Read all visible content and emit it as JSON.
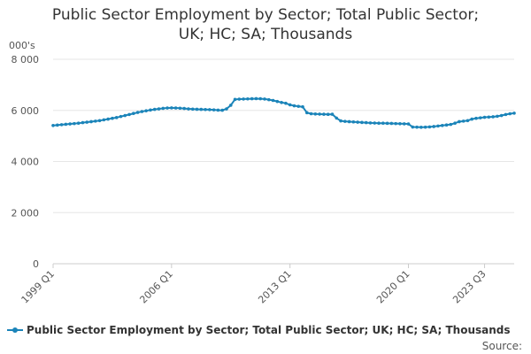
{
  "chart_data": {
    "type": "line",
    "title_lines": [
      "Public Sector Employment by Sector; Total Public Sector;",
      "UK; HC; SA; Thousands"
    ],
    "unit_label": "000's",
    "xlabel": "",
    "ylabel": "000's",
    "ylim": [
      0,
      8000
    ],
    "y_ticks": [
      0,
      2000,
      4000,
      6000,
      8000
    ],
    "y_tick_labels": [
      "0",
      "2 000",
      "4 000",
      "6 000",
      "8 000"
    ],
    "x_tick_labels": [
      "1999 Q1",
      "2006 Q1",
      "2013 Q1",
      "2020 Q1",
      "2023 Q3"
    ],
    "x_tick_indices": [
      0,
      28,
      56,
      84,
      102
    ],
    "grid": true,
    "legend_position": "bottom-left",
    "color": "#1b84b9",
    "series": [
      {
        "name": "Public Sector Employment by Sector; Total Public Sector; UK; HC; SA; Thousands",
        "start": "1999 Q1",
        "values": [
          5410,
          5425,
          5440,
          5455,
          5470,
          5485,
          5500,
          5520,
          5540,
          5560,
          5580,
          5600,
          5630,
          5660,
          5690,
          5720,
          5760,
          5800,
          5840,
          5880,
          5920,
          5955,
          5985,
          6015,
          6040,
          6060,
          6080,
          6095,
          6100,
          6095,
          6085,
          6075,
          6060,
          6050,
          6045,
          6040,
          6035,
          6030,
          6020,
          6010,
          6005,
          6060,
          6200,
          6430,
          6440,
          6445,
          6450,
          6455,
          6460,
          6455,
          6445,
          6420,
          6390,
          6350,
          6310,
          6280,
          6220,
          6180,
          6160,
          6140,
          5910,
          5870,
          5860,
          5855,
          5850,
          5845,
          5850,
          5700,
          5590,
          5570,
          5560,
          5550,
          5540,
          5530,
          5520,
          5510,
          5505,
          5500,
          5500,
          5495,
          5490,
          5485,
          5480,
          5475,
          5470,
          5350,
          5345,
          5340,
          5345,
          5355,
          5370,
          5390,
          5410,
          5430,
          5450,
          5500,
          5560,
          5580,
          5600,
          5660,
          5690,
          5710,
          5730,
          5740,
          5750,
          5770,
          5800,
          5840,
          5870,
          5890
        ]
      }
    ]
  },
  "footer": {
    "source_label": "Source:"
  }
}
